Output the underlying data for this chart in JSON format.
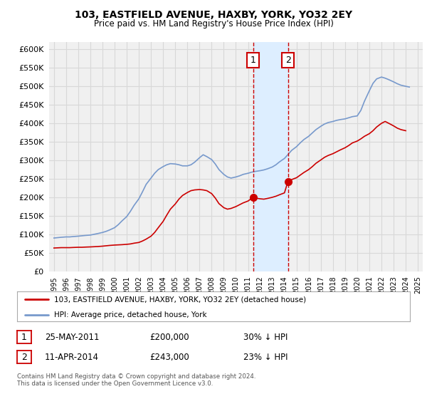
{
  "title": "103, EASTFIELD AVENUE, HAXBY, YORK, YO32 2EY",
  "subtitle": "Price paid vs. HM Land Registry's House Price Index (HPI)",
  "legend_line1": "103, EASTFIELD AVENUE, HAXBY, YORK, YO32 2EY (detached house)",
  "legend_line2": "HPI: Average price, detached house, York",
  "annotation1_label": "1",
  "annotation1_date": "25-MAY-2011",
  "annotation1_price": "£200,000",
  "annotation1_hpi": "30% ↓ HPI",
  "annotation2_label": "2",
  "annotation2_date": "11-APR-2014",
  "annotation2_price": "£243,000",
  "annotation2_hpi": "23% ↓ HPI",
  "footnote": "Contains HM Land Registry data © Crown copyright and database right 2024.\nThis data is licensed under the Open Government Licence v3.0.",
  "red_color": "#cc0000",
  "blue_color": "#7799cc",
  "highlight_color": "#ddeeff",
  "annotation_box_color": "#cc0000",
  "bg_color": "#f0f0f0",
  "plot_bg_color": "#f0f0f0",
  "ylim_min": 0,
  "ylim_max": 620000,
  "yticks": [
    0,
    50000,
    100000,
    150000,
    200000,
    250000,
    300000,
    350000,
    400000,
    450000,
    500000,
    550000,
    600000
  ],
  "hpi_x": [
    1995.0,
    1995.3,
    1995.6,
    1996.0,
    1996.3,
    1996.6,
    1997.0,
    1997.3,
    1997.6,
    1998.0,
    1998.3,
    1998.6,
    1999.0,
    1999.3,
    1999.6,
    2000.0,
    2000.3,
    2000.6,
    2001.0,
    2001.3,
    2001.6,
    2002.0,
    2002.3,
    2002.6,
    2003.0,
    2003.3,
    2003.6,
    2004.0,
    2004.3,
    2004.6,
    2005.0,
    2005.3,
    2005.6,
    2006.0,
    2006.3,
    2006.6,
    2007.0,
    2007.3,
    2007.6,
    2008.0,
    2008.3,
    2008.6,
    2009.0,
    2009.3,
    2009.6,
    2010.0,
    2010.3,
    2010.6,
    2011.0,
    2011.3,
    2011.6,
    2012.0,
    2012.3,
    2012.6,
    2013.0,
    2013.3,
    2013.6,
    2014.0,
    2014.3,
    2014.6,
    2015.0,
    2015.3,
    2015.6,
    2016.0,
    2016.3,
    2016.6,
    2017.0,
    2017.3,
    2017.6,
    2018.0,
    2018.3,
    2018.6,
    2019.0,
    2019.3,
    2019.6,
    2020.0,
    2020.3,
    2020.6,
    2021.0,
    2021.3,
    2021.6,
    2022.0,
    2022.3,
    2022.6,
    2023.0,
    2023.3,
    2023.6,
    2024.0,
    2024.3
  ],
  "hpi_y": [
    90000,
    91000,
    92000,
    93000,
    93000,
    94000,
    95000,
    96000,
    97000,
    98000,
    100000,
    102000,
    105000,
    108000,
    112000,
    118000,
    126000,
    136000,
    148000,
    162000,
    178000,
    196000,
    215000,
    235000,
    252000,
    265000,
    275000,
    283000,
    288000,
    291000,
    290000,
    288000,
    285000,
    285000,
    288000,
    295000,
    307000,
    315000,
    310000,
    302000,
    290000,
    275000,
    262000,
    255000,
    252000,
    255000,
    258000,
    262000,
    265000,
    268000,
    270000,
    272000,
    274000,
    277000,
    282000,
    288000,
    296000,
    305000,
    316000,
    327000,
    337000,
    347000,
    356000,
    365000,
    374000,
    383000,
    392000,
    398000,
    402000,
    405000,
    408000,
    410000,
    412000,
    415000,
    418000,
    420000,
    435000,
    460000,
    488000,
    508000,
    520000,
    525000,
    522000,
    518000,
    512000,
    507000,
    503000,
    500000,
    498000
  ],
  "red_x": [
    1995.0,
    1995.3,
    1995.6,
    1996.0,
    1996.3,
    1996.6,
    1997.0,
    1997.3,
    1997.6,
    1998.0,
    1998.3,
    1998.6,
    1999.0,
    1999.3,
    1999.6,
    2000.0,
    2000.3,
    2000.6,
    2001.0,
    2001.3,
    2001.6,
    2002.0,
    2002.3,
    2002.6,
    2003.0,
    2003.3,
    2003.6,
    2004.0,
    2004.3,
    2004.6,
    2005.0,
    2005.3,
    2005.6,
    2006.0,
    2006.3,
    2006.6,
    2007.0,
    2007.3,
    2007.6,
    2008.0,
    2008.3,
    2008.6,
    2009.0,
    2009.3,
    2009.6,
    2010.0,
    2010.3,
    2010.6,
    2011.0,
    2011.42,
    2011.6,
    2012.0,
    2012.3,
    2012.6,
    2013.0,
    2013.3,
    2013.6,
    2014.0,
    2014.29,
    2014.6,
    2015.0,
    2015.3,
    2015.6,
    2016.0,
    2016.3,
    2016.6,
    2017.0,
    2017.3,
    2017.6,
    2018.0,
    2018.3,
    2018.6,
    2019.0,
    2019.3,
    2019.6,
    2020.0,
    2020.3,
    2020.6,
    2021.0,
    2021.3,
    2021.6,
    2022.0,
    2022.3,
    2022.6,
    2023.0,
    2023.3,
    2023.6,
    2024.0
  ],
  "red_y": [
    63000,
    63500,
    64000,
    64000,
    64000,
    64500,
    65000,
    65000,
    65500,
    66000,
    66500,
    67000,
    68000,
    69000,
    70000,
    71000,
    71500,
    72000,
    73000,
    74000,
    76000,
    78000,
    82000,
    87000,
    95000,
    105000,
    118000,
    135000,
    152000,
    168000,
    182000,
    195000,
    205000,
    213000,
    218000,
    220000,
    221000,
    220000,
    218000,
    210000,
    198000,
    183000,
    172000,
    168000,
    170000,
    175000,
    180000,
    185000,
    190000,
    200000,
    198000,
    196000,
    195000,
    197000,
    200000,
    203000,
    207000,
    212000,
    243000,
    248000,
    253000,
    260000,
    267000,
    275000,
    283000,
    292000,
    301000,
    308000,
    313000,
    318000,
    323000,
    328000,
    334000,
    340000,
    347000,
    352000,
    358000,
    365000,
    372000,
    380000,
    390000,
    400000,
    405000,
    400000,
    393000,
    387000,
    383000,
    380000
  ],
  "sale1_x": 2011.42,
  "sale1_y": 200000,
  "sale2_x": 2014.29,
  "sale2_y": 243000,
  "vline1_x": 2011.42,
  "vline2_x": 2014.29,
  "highlight_x1": 2011.42,
  "highlight_x2": 2014.29,
  "xtick_years": [
    1995,
    1996,
    1997,
    1998,
    1999,
    2000,
    2001,
    2002,
    2003,
    2004,
    2005,
    2006,
    2007,
    2008,
    2009,
    2010,
    2011,
    2012,
    2013,
    2014,
    2015,
    2016,
    2017,
    2018,
    2019,
    2020,
    2021,
    2022,
    2023,
    2024,
    2025
  ]
}
